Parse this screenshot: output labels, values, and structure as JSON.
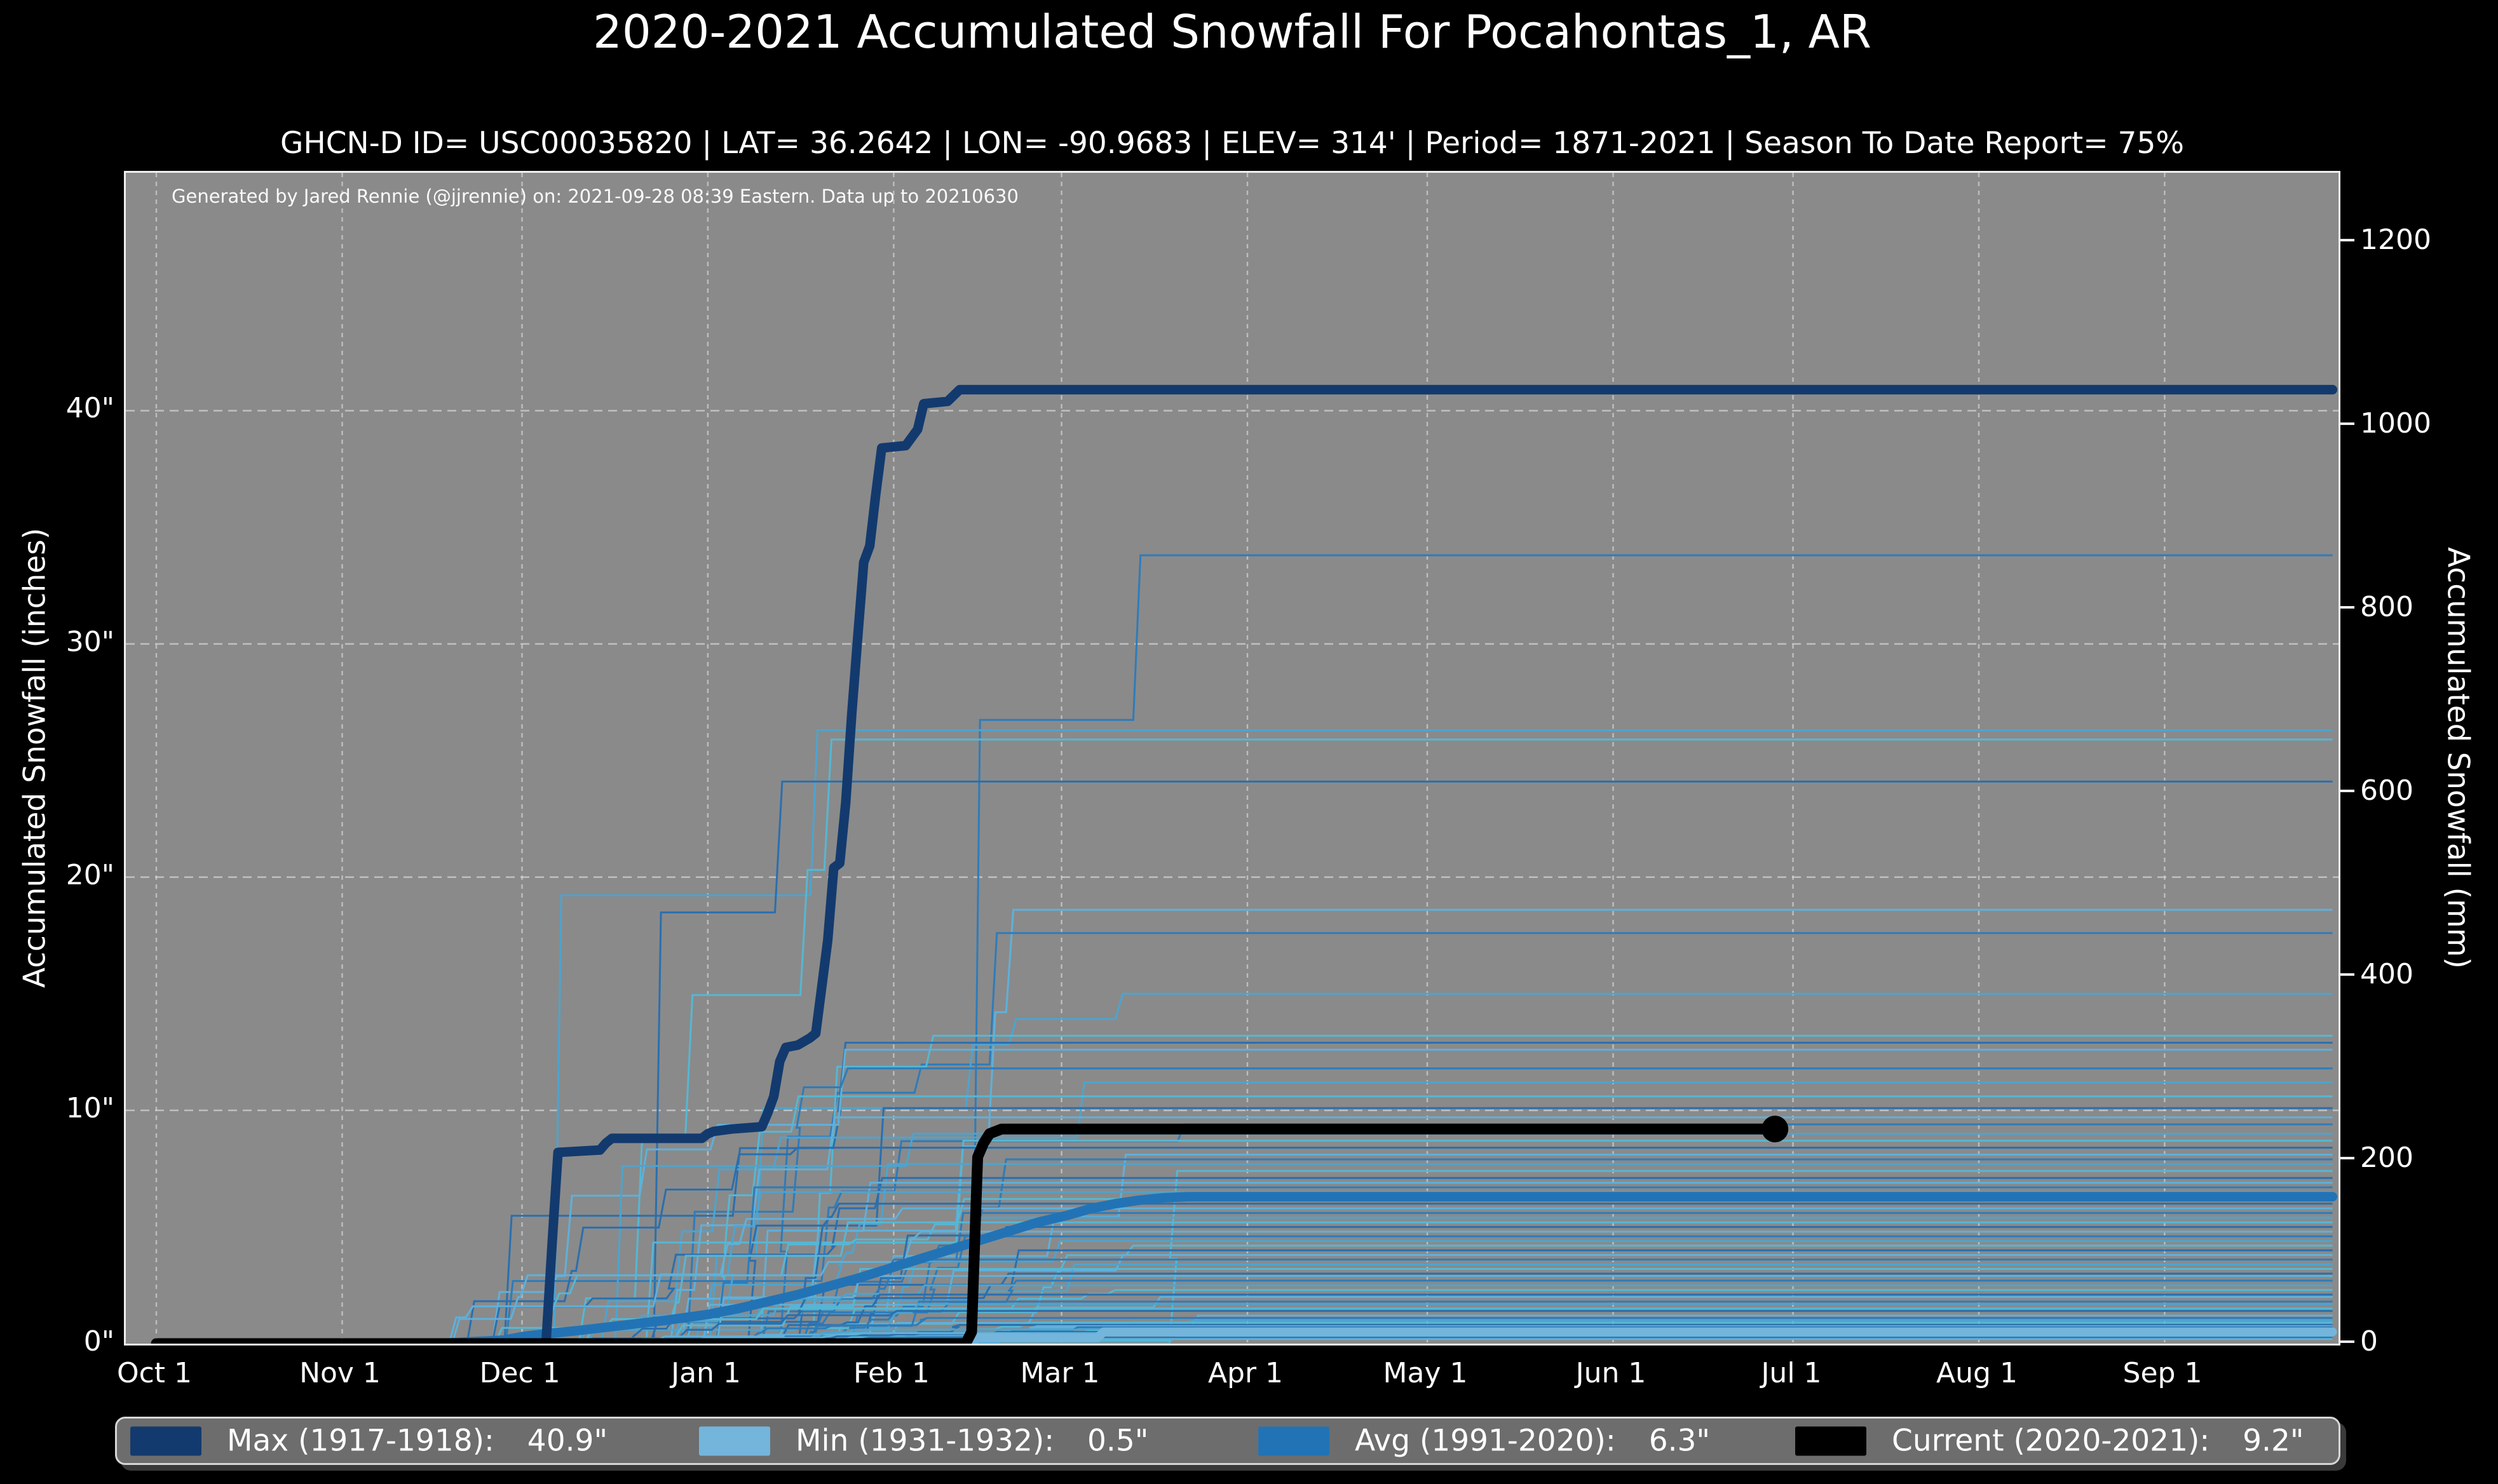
{
  "page": {
    "title": "2020-2021 Accumulated Snowfall For Pocahontas_1, AR",
    "subtitle": "GHCN-D ID= USC00035820 | LAT= 36.2642 | LON= -90.9683 | ELEV= 314' | Period= 1871-2021 | Season To Date Report= 75%",
    "annotation": "Generated by Jared Rennie (@jjrennie) on: 2021-09-28 08:39 Eastern. Data up to 20210630"
  },
  "colors": {
    "page_background": "#000000",
    "plot_background": "#8a8a8a",
    "gridline": "#d8d8d8",
    "spine": "#efefef",
    "text": "#ffffff",
    "legend_background": "#6d6d6d",
    "legend_border": "#d6d6d6"
  },
  "chart_data": {
    "type": "line",
    "title": "2020-2021 Accumulated Snowfall For Pocahontas_1, AR",
    "x_axis": {
      "tick_labels": [
        "Oct 1",
        "Nov 1",
        "Dec 1",
        "Jan 1",
        "Feb 1",
        "Mar 1",
        "Apr 1",
        "May 1",
        "Jun 1",
        "Jul 1",
        "Aug 1",
        "Sep 1"
      ],
      "tick_days": [
        0,
        31,
        61,
        92,
        123,
        151,
        182,
        212,
        243,
        273,
        304,
        335
      ],
      "days_span": 364
    },
    "y_left": {
      "label": "Accumulated Snowfall (inches)",
      "tick_labels": [
        "0\"",
        "10\"",
        "20\"",
        "30\"",
        "40\""
      ],
      "tick_values": [
        0,
        10,
        20,
        30,
        40
      ],
      "range_inches": [
        0,
        50.2
      ]
    },
    "y_right": {
      "label": "Accumulated Snowfall (mm)",
      "tick_labels": [
        "0",
        "200",
        "400",
        "600",
        "800",
        "1000",
        "1200"
      ],
      "tick_values": [
        0,
        200,
        400,
        600,
        800,
        1000,
        1200
      ]
    },
    "grid": {
      "horizontal_at_inches": [
        10,
        20,
        30,
        40
      ],
      "vertical_at_month_starts": true,
      "style": "dashed"
    },
    "series": [
      {
        "id": "min",
        "name": "Min (1931-1932)",
        "final_label": "0.5\"",
        "final_inches": 0.5,
        "color": "#74b5dc",
        "width": 14,
        "points_day_inches": [
          [
            0,
            0
          ],
          [
            136,
            0
          ],
          [
            137,
            0.25
          ],
          [
            157,
            0.25
          ],
          [
            158,
            0.5
          ],
          [
            363,
            0.5
          ]
        ]
      },
      {
        "id": "avg",
        "name": "Avg (1991-2020)",
        "final_label": "6.3\"",
        "final_inches": 6.3,
        "color": "#2273b5",
        "width": 15,
        "points_day_inches": [
          [
            0,
            0
          ],
          [
            48,
            0.02
          ],
          [
            58,
            0.15
          ],
          [
            61,
            0.3
          ],
          [
            66,
            0.45
          ],
          [
            70,
            0.55
          ],
          [
            75,
            0.7
          ],
          [
            80,
            0.85
          ],
          [
            85,
            1.0
          ],
          [
            92,
            1.25
          ],
          [
            97,
            1.5
          ],
          [
            102,
            1.8
          ],
          [
            107,
            2.1
          ],
          [
            112,
            2.45
          ],
          [
            117,
            2.8
          ],
          [
            122,
            3.2
          ],
          [
            127,
            3.6
          ],
          [
            132,
            4.0
          ],
          [
            137,
            4.4
          ],
          [
            142,
            4.8
          ],
          [
            147,
            5.2
          ],
          [
            152,
            5.5
          ],
          [
            156,
            5.8
          ],
          [
            160,
            6.0
          ],
          [
            164,
            6.15
          ],
          [
            168,
            6.25
          ],
          [
            172,
            6.3
          ],
          [
            363,
            6.3
          ]
        ]
      },
      {
        "id": "max",
        "name": "Max (1917-1918)",
        "final_label": "40.9\"",
        "final_inches": 40.9,
        "color": "#133a6e",
        "width": 15,
        "points_day_inches": [
          [
            0,
            0
          ],
          [
            65,
            0
          ],
          [
            66,
            4.2
          ],
          [
            67,
            8.2
          ],
          [
            74,
            8.3
          ],
          [
            75,
            8.6
          ],
          [
            76,
            8.8
          ],
          [
            91,
            8.8
          ],
          [
            92,
            9.0
          ],
          [
            93,
            9.1
          ],
          [
            96,
            9.2
          ],
          [
            101,
            9.3
          ],
          [
            102,
            9.9
          ],
          [
            103,
            10.6
          ],
          [
            104,
            12.1
          ],
          [
            105,
            12.7
          ],
          [
            107,
            12.8
          ],
          [
            109,
            13.1
          ],
          [
            110,
            13.3
          ],
          [
            111,
            15.3
          ],
          [
            112,
            17.3
          ],
          [
            113,
            20.4
          ],
          [
            114,
            20.6
          ],
          [
            115,
            23.2
          ],
          [
            116,
            27.0
          ],
          [
            117,
            30.3
          ],
          [
            118,
            33.5
          ],
          [
            119,
            34.2
          ],
          [
            120,
            36.4
          ],
          [
            121,
            38.4
          ],
          [
            125,
            38.5
          ],
          [
            127,
            39.2
          ],
          [
            128,
            40.3
          ],
          [
            132,
            40.4
          ],
          [
            134,
            40.9
          ],
          [
            363,
            40.9
          ]
        ]
      },
      {
        "id": "current",
        "name": "Current (2020-2021)",
        "final_label": "9.2\"",
        "final_inches": 9.2,
        "color": "#000000",
        "width": 17,
        "end_marker": {
          "day": 270,
          "inches": 9.2,
          "radius": 21
        },
        "points_day_inches": [
          [
            0,
            0
          ],
          [
            135,
            0
          ],
          [
            136,
            0.5
          ],
          [
            137,
            8.0
          ],
          [
            138,
            8.6
          ],
          [
            139,
            9.0
          ],
          [
            141,
            9.2
          ],
          [
            270,
            9.2
          ]
        ]
      }
    ],
    "background_years": {
      "description": "Individual seasons 1871-2021 drawn as thin blue step lines; end-of-season totals approximated from pixels",
      "palette": [
        "#2e7cba",
        "#4da4cf",
        "#56b7d3",
        "#2a6fae",
        "#5fb0da"
      ],
      "seed": 7,
      "line_width": 3,
      "final_values_inches": [
        33.8,
        26.3,
        25.9,
        24.1,
        18.6,
        17.6,
        15.0,
        13.2,
        12.9,
        12.6,
        11.8,
        11.2,
        10.6,
        10.1,
        9.7,
        9.4,
        9.0,
        8.7,
        8.4,
        8.1,
        7.9,
        7.7,
        7.4,
        7.1,
        6.9,
        6.7,
        6.5,
        6.2,
        6.0,
        5.8,
        5.6,
        5.4,
        5.2,
        5.0,
        4.8,
        4.6,
        4.4,
        4.2,
        4.0,
        3.8,
        3.6,
        3.4,
        3.2,
        3.0,
        2.9,
        2.7,
        2.5,
        2.3,
        2.1,
        2.0,
        1.8,
        1.7,
        1.5,
        1.4,
        1.2,
        1.1,
        1.0,
        0.9,
        0.8,
        0.75,
        0.7,
        0.6,
        0.55,
        0.5,
        0.45,
        0.4,
        0.35,
        0.3,
        0.25,
        0.2
      ]
    }
  },
  "legend": {
    "items": [
      {
        "label": "Max (1917-1918):",
        "value": "40.9\"",
        "color": "#133a6e"
      },
      {
        "label": "Min (1931-1932):",
        "value": "0.5\"",
        "color": "#74b5dc"
      },
      {
        "label": "Avg (1991-2020):",
        "value": "6.3\"",
        "color": "#2273b5"
      },
      {
        "label": "Current (2020-2021):",
        "value": "9.2\"",
        "color": "#000000"
      }
    ]
  }
}
